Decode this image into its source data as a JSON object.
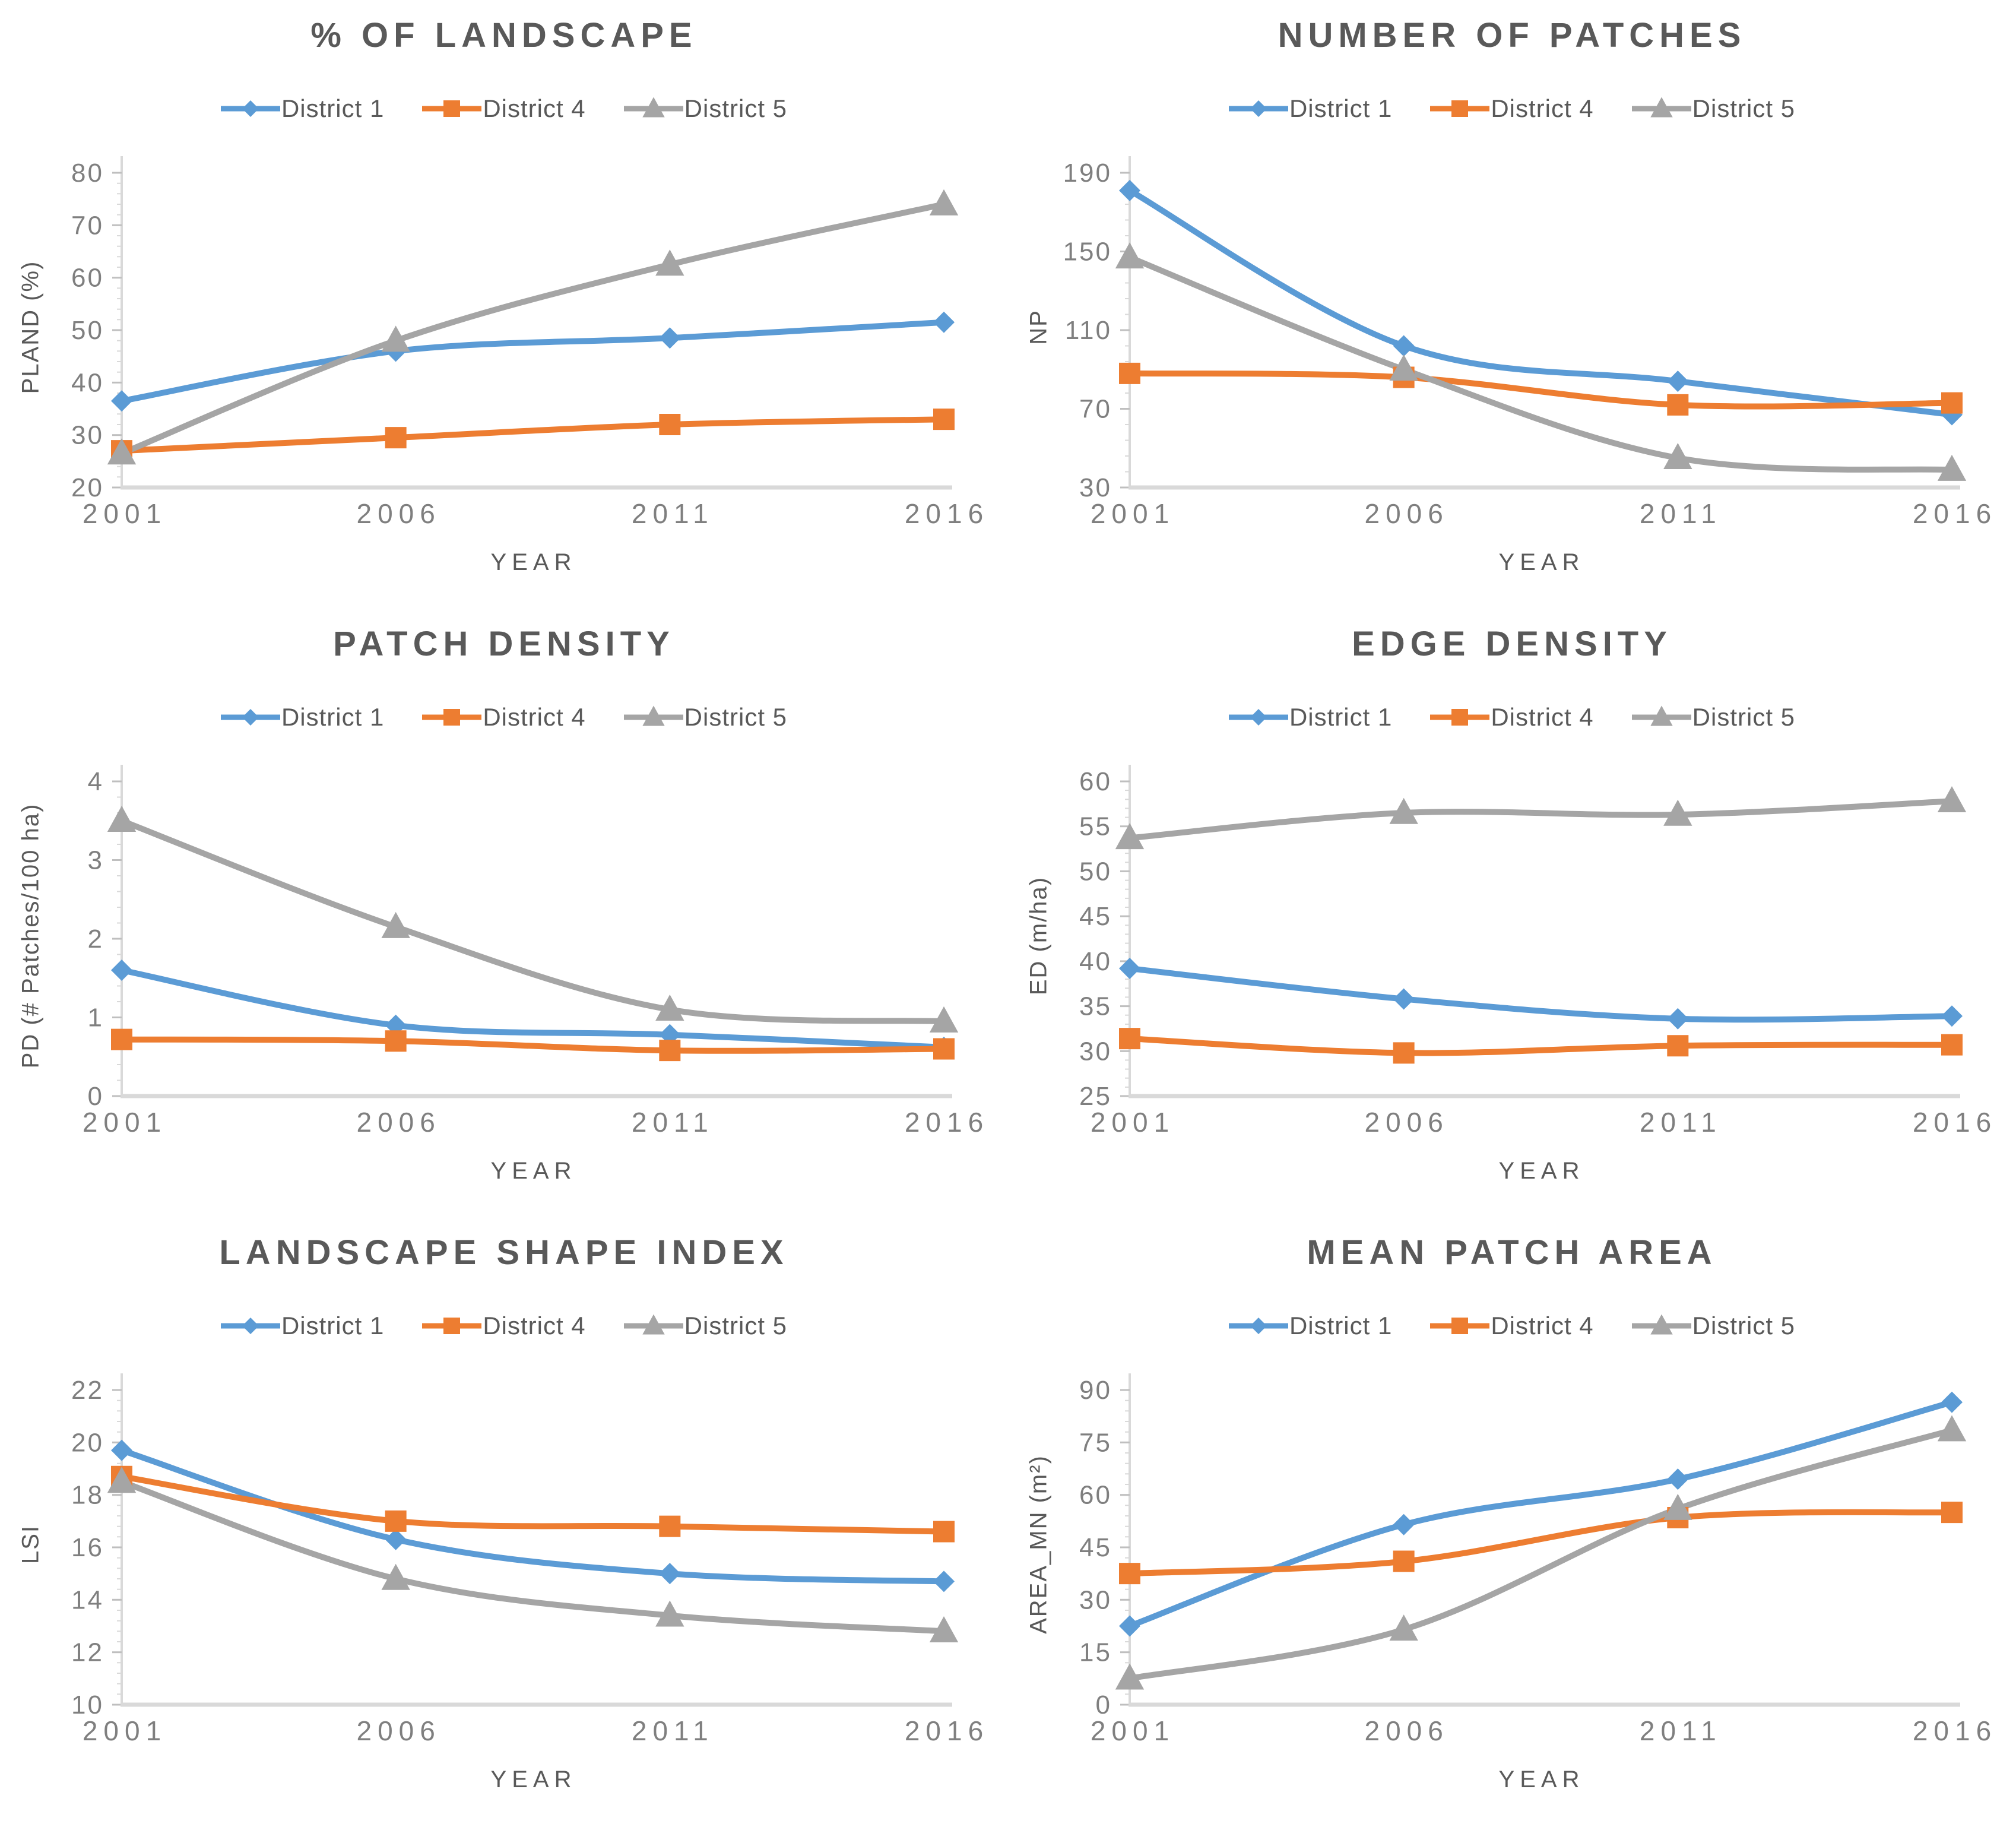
{
  "page": {
    "background": "#ffffff",
    "layout": "2x3 grid of line charts"
  },
  "colors": {
    "title_text": "#595959",
    "axis_label_text": "#595959",
    "tick_label_text": "#7f7f7f",
    "axis_line": "#d9d9d9",
    "tick_mark": "#bfbfbf",
    "district1": "#5b9bd5",
    "district4": "#ed7d31",
    "district5": "#a5a5a5"
  },
  "districts": [
    {
      "name": "District 1",
      "color": "#5b9bd5",
      "marker": "diamond"
    },
    {
      "name": "District 4",
      "color": "#ed7d31",
      "marker": "square"
    },
    {
      "name": "District 5",
      "color": "#a5a5a5",
      "marker": "triangle"
    }
  ],
  "chart_data": [
    {
      "type": "line",
      "title": "% OF LANDSCAPE",
      "ylabel": "PLAND (%)",
      "xlabel": "YEAR",
      "legend_position": "top",
      "grid": false,
      "categories": [
        "2001",
        "2006",
        "2011",
        "2016"
      ],
      "ylim": [
        20,
        80
      ],
      "ytick_step": 10,
      "yticks": [
        20,
        30,
        40,
        50,
        60,
        70,
        80
      ],
      "series": [
        {
          "name": "District 1",
          "values": [
            36.5,
            46,
            48.5,
            51.5
          ]
        },
        {
          "name": "District 4",
          "values": [
            27,
            29.5,
            32,
            33
          ]
        },
        {
          "name": "District 5",
          "values": [
            26.5,
            48,
            62.5,
            74
          ]
        }
      ]
    },
    {
      "type": "line",
      "title": "NUMBER OF PATCHES",
      "ylabel": "NP",
      "xlabel": "YEAR",
      "legend_position": "top",
      "grid": false,
      "categories": [
        "2001",
        "2006",
        "2011",
        "2016"
      ],
      "ylim": [
        30,
        190
      ],
      "ytick_step": 40,
      "yticks": [
        30,
        70,
        110,
        150,
        190
      ],
      "series": [
        {
          "name": "District 1",
          "values": [
            181,
            102,
            84,
            67
          ]
        },
        {
          "name": "District 4",
          "values": [
            88,
            86,
            72,
            73
          ]
        },
        {
          "name": "District 5",
          "values": [
            147,
            90,
            45,
            39
          ]
        }
      ]
    },
    {
      "type": "line",
      "title": "PATCH DENSITY",
      "ylabel": "PD (# Patches/100 ha)",
      "xlabel": "YEAR",
      "legend_position": "top",
      "grid": false,
      "categories": [
        "2001",
        "2006",
        "2011",
        "2016"
      ],
      "ylim": [
        0,
        4
      ],
      "ytick_step": 1,
      "yticks": [
        0,
        1,
        2,
        3,
        4
      ],
      "series": [
        {
          "name": "District 1",
          "values": [
            1.6,
            0.9,
            0.78,
            0.62
          ]
        },
        {
          "name": "District 4",
          "values": [
            0.72,
            0.7,
            0.58,
            0.6
          ]
        },
        {
          "name": "District 5",
          "values": [
            3.5,
            2.15,
            1.1,
            0.95
          ]
        }
      ]
    },
    {
      "type": "line",
      "title": "EDGE DENSITY",
      "ylabel": "ED (m/ha)",
      "xlabel": "YEAR",
      "legend_position": "top",
      "grid": false,
      "categories": [
        "2001",
        "2006",
        "2011",
        "2016"
      ],
      "ylim": [
        25,
        60
      ],
      "ytick_step": 5,
      "yticks": [
        25,
        30,
        35,
        40,
        45,
        50,
        55,
        60
      ],
      "series": [
        {
          "name": "District 1",
          "values": [
            39.2,
            35.8,
            33.6,
            33.9
          ]
        },
        {
          "name": "District 4",
          "values": [
            31.4,
            29.8,
            30.6,
            30.7
          ]
        },
        {
          "name": "District 5",
          "values": [
            53.7,
            56.5,
            56.3,
            57.8
          ]
        }
      ]
    },
    {
      "type": "line",
      "title": "LANDSCAPE SHAPE INDEX",
      "ylabel": "LSI",
      "xlabel": "YEAR",
      "legend_position": "top",
      "grid": false,
      "categories": [
        "2001",
        "2006",
        "2011",
        "2016"
      ],
      "ylim": [
        10,
        22
      ],
      "ytick_step": 2,
      "yticks": [
        10,
        12,
        14,
        16,
        18,
        20,
        22
      ],
      "series": [
        {
          "name": "District 1",
          "values": [
            19.7,
            16.3,
            15.0,
            14.7
          ]
        },
        {
          "name": "District 4",
          "values": [
            18.7,
            17.0,
            16.8,
            16.6
          ]
        },
        {
          "name": "District 5",
          "values": [
            18.5,
            14.8,
            13.4,
            12.8
          ]
        }
      ]
    },
    {
      "type": "line",
      "title": "MEAN PATCH AREA",
      "ylabel": "AREA_MN (m²)",
      "xlabel": "YEAR",
      "legend_position": "top",
      "grid": false,
      "categories": [
        "2001",
        "2006",
        "2011",
        "2016"
      ],
      "ylim": [
        0,
        90
      ],
      "ytick_step": 15,
      "yticks": [
        0,
        15,
        30,
        45,
        60,
        75,
        90
      ],
      "series": [
        {
          "name": "District 1",
          "values": [
            22.5,
            51.5,
            64.5,
            86.5
          ]
        },
        {
          "name": "District 4",
          "values": [
            37.5,
            41,
            53.5,
            55
          ]
        },
        {
          "name": "District 5",
          "values": [
            7.5,
            21.5,
            56,
            78.5
          ]
        }
      ]
    }
  ]
}
